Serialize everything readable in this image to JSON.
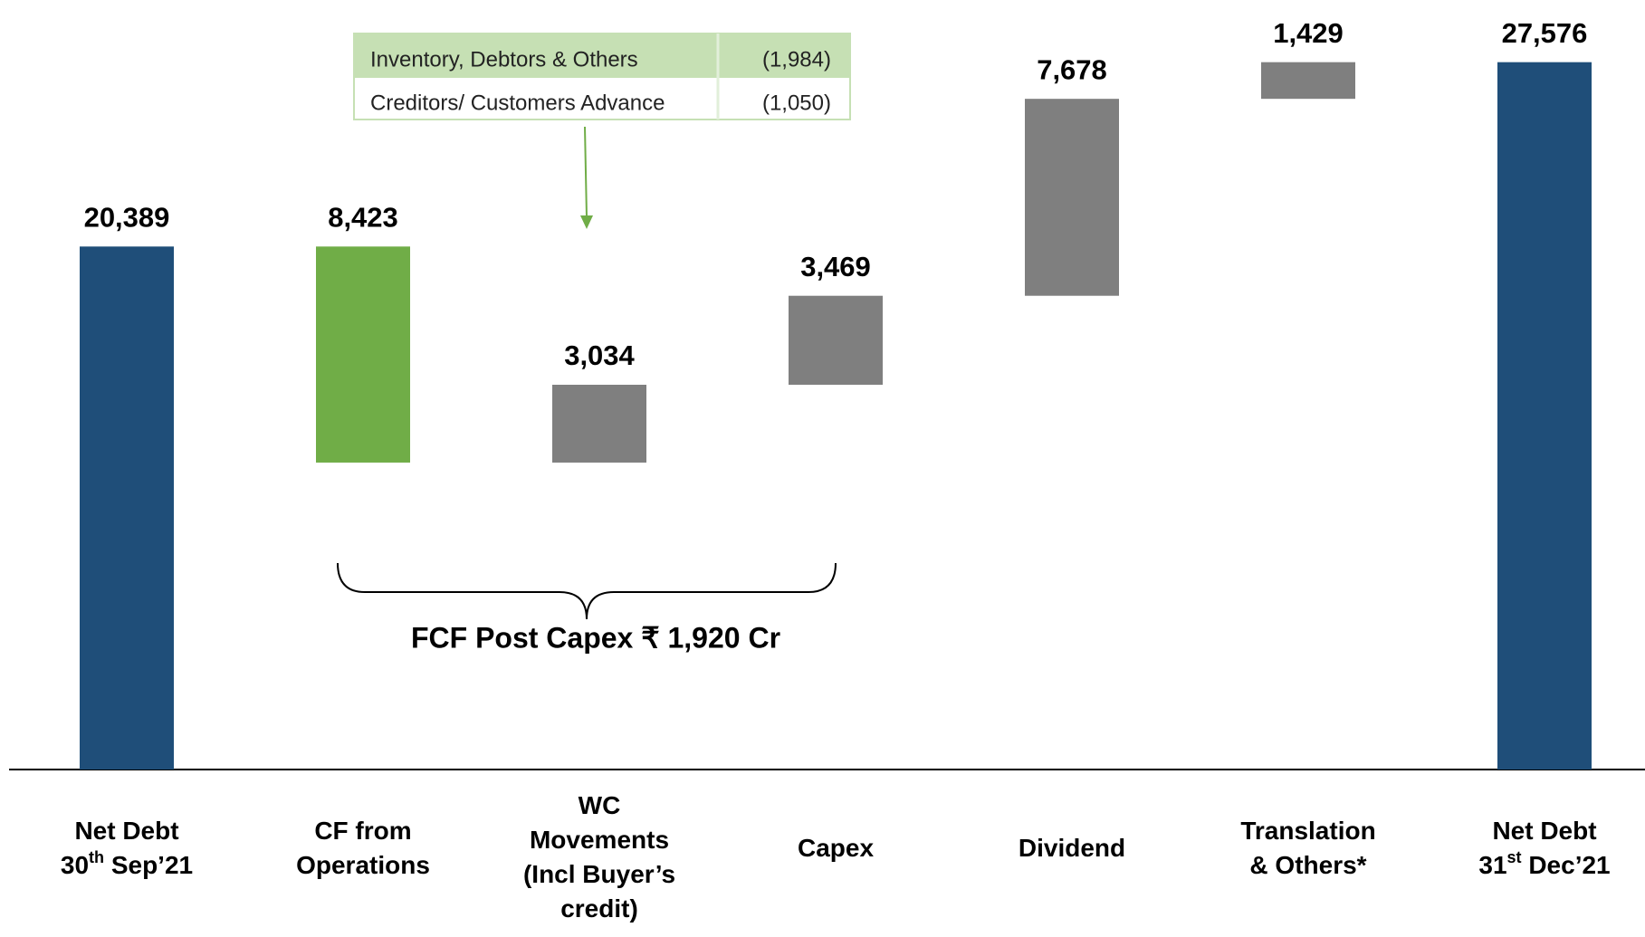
{
  "chart_data": {
    "type": "waterfall",
    "categories": [
      [
        [
          {
            "text": "Net Debt"
          }
        ],
        [
          {
            "text": "30"
          },
          {
            "text": "th",
            "sup": true
          },
          {
            "text": " Sep’21"
          }
        ]
      ],
      [
        [
          {
            "text": "CF from"
          }
        ],
        [
          {
            "text": "Operations"
          }
        ]
      ],
      [
        [
          {
            "text": "WC"
          }
        ],
        [
          {
            "text": "Movements"
          }
        ],
        [
          {
            "text": "(Incl Buyer’s"
          }
        ],
        [
          {
            "text": "credit)"
          }
        ]
      ],
      [
        [
          {
            "text": "Capex"
          }
        ]
      ],
      [
        [
          {
            "text": "Dividend"
          }
        ]
      ],
      [
        [
          {
            "text": "Translation"
          }
        ],
        [
          {
            "text": "& Others*"
          }
        ]
      ],
      [
        [
          {
            "text": "Net Debt"
          }
        ],
        [
          {
            "text": "31"
          },
          {
            "text": "st",
            "sup": true
          },
          {
            "text": " Dec’21"
          }
        ]
      ]
    ],
    "values": [
      20389,
      8423,
      3034,
      3469,
      7678,
      1429,
      27576
    ],
    "value_labels": [
      "20,389",
      "8,423",
      "3,034",
      "3,469",
      "7,678",
      "1,429",
      "27,576"
    ],
    "measures": [
      "total",
      "decrease",
      "increase",
      "increase",
      "increase",
      "increase",
      "total"
    ],
    "colors": {
      "total": "#1f4e79",
      "decrease": "#70ad47",
      "increase": "#7f7f7f"
    },
    "ylim": [
      0,
      30000
    ],
    "inset_table": [
      [
        "Inventory, Debtors & Others",
        "(1,984)"
      ],
      [
        "Creditors/ Customers Advance",
        "(1,050)"
      ]
    ],
    "annotation": "FCF Post Capex ₹ 1,920 Cr"
  }
}
